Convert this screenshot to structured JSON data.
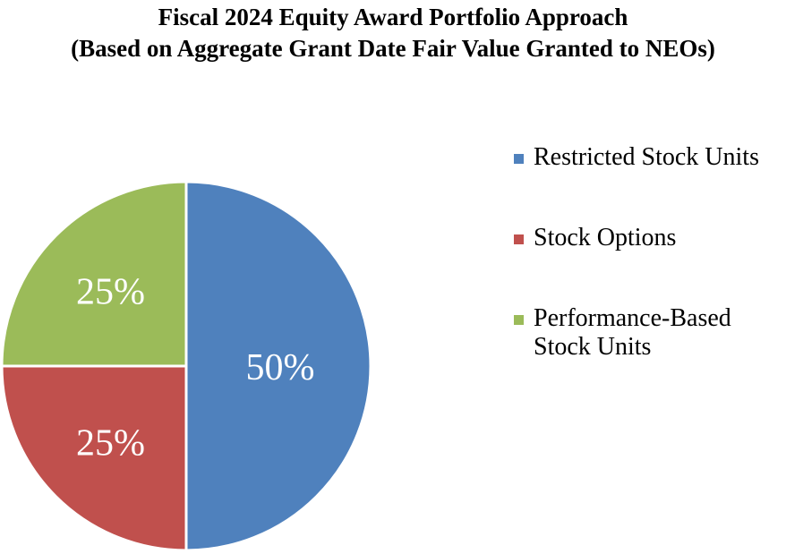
{
  "chart_data": {
    "type": "pie",
    "title": [
      "Fiscal 2024 Equity Award Portfolio Approach",
      "(Based on Aggregate Grant Date Fair Value Granted to NEOs)"
    ],
    "slices": [
      {
        "label": "Restricted Stock Units",
        "value": 50,
        "display": "50%",
        "color": "#4f81bd"
      },
      {
        "label": "Stock Options",
        "value": 25,
        "display": "25%",
        "color": "#c0504d"
      },
      {
        "label": "Performance-Based Stock Units",
        "value": 25,
        "display": "25%",
        "color": "#9bbb59"
      }
    ],
    "legend_position": "right"
  }
}
